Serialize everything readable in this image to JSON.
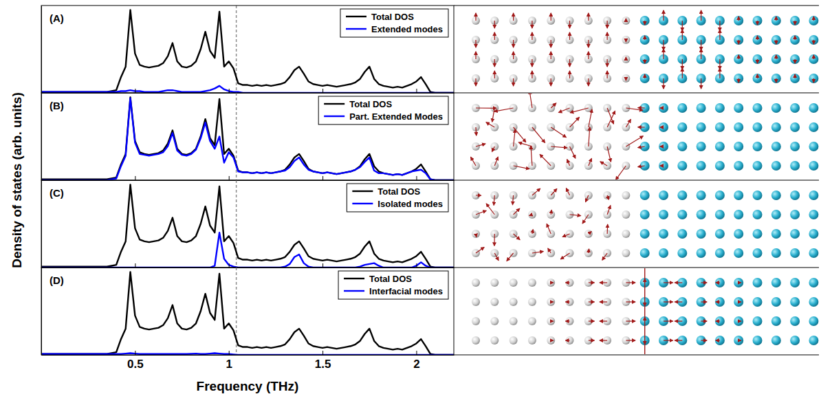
{
  "figure": {
    "ylabel": "Density of states (arb. units)",
    "xlabel": "Frequency (THz)"
  },
  "chart_data": [
    {
      "type": "line",
      "title": "(A)",
      "x": [
        0,
        0.025,
        0.05,
        0.075,
        0.1,
        0.125,
        0.15,
        0.175,
        0.2,
        0.225,
        0.25,
        0.275,
        0.3,
        0.325,
        0.35,
        0.375,
        0.4,
        0.425,
        0.45,
        0.475,
        0.5,
        0.525,
        0.55,
        0.575,
        0.6,
        0.625,
        0.65,
        0.675,
        0.7,
        0.725,
        0.75,
        0.775,
        0.8,
        0.825,
        0.85,
        0.875,
        0.9,
        0.925,
        0.95,
        0.975,
        1,
        1.025,
        1.05,
        1.075,
        1.1,
        1.125,
        1.15,
        1.175,
        1.2,
        1.225,
        1.25,
        1.275,
        1.3,
        1.325,
        1.35,
        1.375,
        1.4,
        1.425,
        1.45,
        1.475,
        1.5,
        1.525,
        1.55,
        1.575,
        1.6,
        1.625,
        1.65,
        1.675,
        1.7,
        1.725,
        1.75,
        1.775,
        1.8,
        1.825,
        1.85,
        1.875,
        1.9,
        1.925,
        1.95,
        1.975,
        2,
        2.025,
        2.05,
        2.075,
        2.1,
        2.125,
        2.15,
        2.175,
        2.2
      ],
      "xlim": [
        0,
        2.2
      ],
      "xticks": [
        0.5,
        1,
        1.5,
        2
      ],
      "ylim": [
        0,
        1
      ],
      "yticks": [],
      "tick_labels": false,
      "legend": "upper right",
      "vlines": [
        1.04
      ],
      "series": [
        {
          "name": "Total DOS",
          "color": "#000000",
          "values": [
            0.01,
            0.01,
            0.01,
            0.01,
            0.01,
            0.01,
            0.01,
            0.01,
            0.01,
            0.01,
            0.01,
            0.01,
            0.01,
            0.01,
            0.01,
            0.02,
            0.03,
            0.18,
            0.3,
            0.95,
            0.45,
            0.32,
            0.3,
            0.29,
            0.3,
            0.31,
            0.34,
            0.42,
            0.57,
            0.36,
            0.3,
            0.29,
            0.31,
            0.36,
            0.5,
            0.7,
            0.48,
            0.4,
            0.93,
            0.3,
            0.36,
            0.28,
            0.11,
            0.09,
            0.09,
            0.08,
            0.09,
            0.08,
            0.09,
            0.08,
            0.09,
            0.1,
            0.12,
            0.18,
            0.26,
            0.3,
            0.22,
            0.13,
            0.1,
            0.09,
            0.08,
            0.09,
            0.08,
            0.07,
            0.08,
            0.09,
            0.1,
            0.12,
            0.16,
            0.24,
            0.3,
            0.16,
            0.1,
            0.08,
            0.07,
            0.06,
            0.07,
            0.06,
            0.08,
            0.1,
            0.13,
            0.18,
            0.1,
            0.01,
            0,
            0,
            0,
            0,
            0
          ]
        },
        {
          "name": "Extended modes",
          "color": "#0000ff",
          "values": [
            0.01,
            0.01,
            0.01,
            0.01,
            0.01,
            0.01,
            0.01,
            0.01,
            0.01,
            0.01,
            0.01,
            0.01,
            0.01,
            0.01,
            0.01,
            0.01,
            0.01,
            0.02,
            0.02,
            0.03,
            0.02,
            0.02,
            0.01,
            0.01,
            0.01,
            0.01,
            0.02,
            0.03,
            0.03,
            0.02,
            0.01,
            0.01,
            0.01,
            0.01,
            0.01,
            0.02,
            0.03,
            0.05,
            0.08,
            0.04,
            0.02,
            0.01,
            0.01,
            0,
            0,
            0,
            0,
            0,
            0,
            0,
            0,
            0,
            0,
            0,
            0,
            0,
            0,
            0,
            0,
            0,
            0,
            0,
            0,
            0,
            0,
            0,
            0,
            0,
            0,
            0,
            0,
            0,
            0,
            0,
            0,
            0,
            0,
            0,
            0,
            0,
            0,
            0,
            0,
            0,
            0,
            0,
            0,
            0,
            0
          ]
        }
      ]
    },
    {
      "type": "line",
      "title": "(B)",
      "x": [
        0,
        0.025,
        0.05,
        0.075,
        0.1,
        0.125,
        0.15,
        0.175,
        0.2,
        0.225,
        0.25,
        0.275,
        0.3,
        0.325,
        0.35,
        0.375,
        0.4,
        0.425,
        0.45,
        0.475,
        0.5,
        0.525,
        0.55,
        0.575,
        0.6,
        0.625,
        0.65,
        0.675,
        0.7,
        0.725,
        0.75,
        0.775,
        0.8,
        0.825,
        0.85,
        0.875,
        0.9,
        0.925,
        0.95,
        0.975,
        1,
        1.025,
        1.05,
        1.075,
        1.1,
        1.125,
        1.15,
        1.175,
        1.2,
        1.225,
        1.25,
        1.275,
        1.3,
        1.325,
        1.35,
        1.375,
        1.4,
        1.425,
        1.45,
        1.475,
        1.5,
        1.525,
        1.55,
        1.575,
        1.6,
        1.625,
        1.65,
        1.675,
        1.7,
        1.725,
        1.75,
        1.775,
        1.8,
        1.825,
        1.85,
        1.875,
        1.9,
        1.925,
        1.95,
        1.975,
        2,
        2.025,
        2.05,
        2.075,
        2.1,
        2.125,
        2.15,
        2.175,
        2.2
      ],
      "xlim": [
        0,
        2.2
      ],
      "xticks": [
        0.5,
        1,
        1.5,
        2
      ],
      "ylim": [
        0,
        1
      ],
      "yticks": [],
      "tick_labels": false,
      "legend": "upper right",
      "vlines": [
        1.04
      ],
      "series": [
        {
          "name": "Total DOS",
          "color": "#000000",
          "values": [
            0.01,
            0.01,
            0.01,
            0.01,
            0.01,
            0.01,
            0.01,
            0.01,
            0.01,
            0.01,
            0.01,
            0.01,
            0.01,
            0.01,
            0.01,
            0.02,
            0.03,
            0.18,
            0.3,
            0.95,
            0.45,
            0.32,
            0.3,
            0.29,
            0.3,
            0.31,
            0.34,
            0.42,
            0.57,
            0.36,
            0.3,
            0.29,
            0.31,
            0.36,
            0.5,
            0.7,
            0.48,
            0.4,
            0.93,
            0.3,
            0.36,
            0.28,
            0.11,
            0.09,
            0.09,
            0.08,
            0.09,
            0.08,
            0.09,
            0.08,
            0.09,
            0.1,
            0.12,
            0.18,
            0.26,
            0.3,
            0.22,
            0.13,
            0.1,
            0.09,
            0.08,
            0.09,
            0.08,
            0.07,
            0.08,
            0.09,
            0.1,
            0.12,
            0.16,
            0.24,
            0.3,
            0.16,
            0.1,
            0.08,
            0.07,
            0.06,
            0.07,
            0.06,
            0.08,
            0.1,
            0.13,
            0.18,
            0.1,
            0.01,
            0,
            0,
            0,
            0,
            0
          ]
        },
        {
          "name": "Part. Extended Modes",
          "color": "#0000ff",
          "values": [
            0,
            0,
            0,
            0,
            0,
            0,
            0,
            0,
            0,
            0,
            0,
            0,
            0,
            0,
            0,
            0.01,
            0.02,
            0.16,
            0.28,
            0.94,
            0.43,
            0.3,
            0.29,
            0.28,
            0.29,
            0.3,
            0.32,
            0.39,
            0.54,
            0.34,
            0.29,
            0.28,
            0.3,
            0.35,
            0.48,
            0.66,
            0.45,
            0.36,
            0.5,
            0.2,
            0.32,
            0.26,
            0.1,
            0.09,
            0.09,
            0.08,
            0.09,
            0.08,
            0.09,
            0.08,
            0.09,
            0.1,
            0.11,
            0.15,
            0.22,
            0.26,
            0.18,
            0.12,
            0.1,
            0.09,
            0.08,
            0.09,
            0.08,
            0.07,
            0.08,
            0.09,
            0.1,
            0.12,
            0.15,
            0.21,
            0.26,
            0.11,
            0.08,
            0.08,
            0.07,
            0.06,
            0.07,
            0.06,
            0.08,
            0.1,
            0.11,
            0.12,
            0.08,
            0.01,
            0,
            0,
            0,
            0,
            0
          ]
        }
      ]
    },
    {
      "type": "line",
      "title": "(C)",
      "x": [
        0,
        0.025,
        0.05,
        0.075,
        0.1,
        0.125,
        0.15,
        0.175,
        0.2,
        0.225,
        0.25,
        0.275,
        0.3,
        0.325,
        0.35,
        0.375,
        0.4,
        0.425,
        0.45,
        0.475,
        0.5,
        0.525,
        0.55,
        0.575,
        0.6,
        0.625,
        0.65,
        0.675,
        0.7,
        0.725,
        0.75,
        0.775,
        0.8,
        0.825,
        0.85,
        0.875,
        0.9,
        0.925,
        0.95,
        0.975,
        1,
        1.025,
        1.05,
        1.075,
        1.1,
        1.125,
        1.15,
        1.175,
        1.2,
        1.225,
        1.25,
        1.275,
        1.3,
        1.325,
        1.35,
        1.375,
        1.4,
        1.425,
        1.45,
        1.475,
        1.5,
        1.525,
        1.55,
        1.575,
        1.6,
        1.625,
        1.65,
        1.675,
        1.7,
        1.725,
        1.75,
        1.775,
        1.8,
        1.825,
        1.85,
        1.875,
        1.9,
        1.925,
        1.95,
        1.975,
        2,
        2.025,
        2.05,
        2.075,
        2.1,
        2.125,
        2.15,
        2.175,
        2.2
      ],
      "xlim": [
        0,
        2.2
      ],
      "xticks": [
        0.5,
        1,
        1.5,
        2
      ],
      "ylim": [
        0,
        1
      ],
      "yticks": [],
      "tick_labels": false,
      "legend": "upper right",
      "vlines": [
        1.04
      ],
      "series": [
        {
          "name": "Total DOS",
          "color": "#000000",
          "values": [
            0.01,
            0.01,
            0.01,
            0.01,
            0.01,
            0.01,
            0.01,
            0.01,
            0.01,
            0.01,
            0.01,
            0.01,
            0.01,
            0.01,
            0.01,
            0.02,
            0.03,
            0.18,
            0.3,
            0.95,
            0.45,
            0.32,
            0.3,
            0.29,
            0.3,
            0.31,
            0.34,
            0.42,
            0.57,
            0.36,
            0.3,
            0.29,
            0.31,
            0.36,
            0.5,
            0.7,
            0.48,
            0.4,
            0.93,
            0.3,
            0.36,
            0.28,
            0.11,
            0.09,
            0.09,
            0.08,
            0.09,
            0.08,
            0.09,
            0.08,
            0.09,
            0.1,
            0.12,
            0.18,
            0.26,
            0.3,
            0.22,
            0.13,
            0.1,
            0.09,
            0.08,
            0.09,
            0.08,
            0.07,
            0.08,
            0.09,
            0.1,
            0.12,
            0.16,
            0.24,
            0.3,
            0.16,
            0.1,
            0.08,
            0.07,
            0.06,
            0.07,
            0.06,
            0.08,
            0.1,
            0.13,
            0.18,
            0.1,
            0.01,
            0,
            0,
            0,
            0,
            0
          ]
        },
        {
          "name": "Isolated modes",
          "color": "#0000ff",
          "values": [
            0,
            0,
            0,
            0,
            0,
            0,
            0,
            0,
            0,
            0,
            0,
            0,
            0,
            0,
            0,
            0,
            0,
            0,
            0,
            0,
            0,
            0,
            0,
            0,
            0,
            0,
            0,
            0,
            0,
            0,
            0,
            0,
            0,
            0,
            0,
            0,
            0,
            0.02,
            0.4,
            0.1,
            0.03,
            0.01,
            0,
            0,
            0,
            0,
            0,
            0,
            0,
            0,
            0,
            0,
            0.01,
            0.04,
            0.12,
            0.15,
            0.05,
            0.01,
            0,
            0,
            0,
            0,
            0,
            0,
            0,
            0,
            0,
            0,
            0.01,
            0.03,
            0.04,
            0.05,
            0.02,
            0,
            0,
            0,
            0,
            0,
            0,
            0,
            0.02,
            0.06,
            0.02,
            0,
            0,
            0,
            0,
            0,
            0
          ]
        }
      ]
    },
    {
      "type": "line",
      "title": "(D)",
      "x": [
        0,
        0.025,
        0.05,
        0.075,
        0.1,
        0.125,
        0.15,
        0.175,
        0.2,
        0.225,
        0.25,
        0.275,
        0.3,
        0.325,
        0.35,
        0.375,
        0.4,
        0.425,
        0.45,
        0.475,
        0.5,
        0.525,
        0.55,
        0.575,
        0.6,
        0.625,
        0.65,
        0.675,
        0.7,
        0.725,
        0.75,
        0.775,
        0.8,
        0.825,
        0.85,
        0.875,
        0.9,
        0.925,
        0.95,
        0.975,
        1,
        1.025,
        1.05,
        1.075,
        1.1,
        1.125,
        1.15,
        1.175,
        1.2,
        1.225,
        1.25,
        1.275,
        1.3,
        1.325,
        1.35,
        1.375,
        1.4,
        1.425,
        1.45,
        1.475,
        1.5,
        1.525,
        1.55,
        1.575,
        1.6,
        1.625,
        1.65,
        1.675,
        1.7,
        1.725,
        1.75,
        1.775,
        1.8,
        1.825,
        1.85,
        1.875,
        1.9,
        1.925,
        1.95,
        1.975,
        2,
        2.025,
        2.05,
        2.075,
        2.1,
        2.125,
        2.15,
        2.175,
        2.2
      ],
      "xlim": [
        0,
        2.2
      ],
      "xticks": [
        0.5,
        1,
        1.5,
        2
      ],
      "ylim": [
        0,
        1
      ],
      "yticks": [],
      "tick_labels": "x",
      "legend": "upper right",
      "vlines": [
        1.04
      ],
      "series": [
        {
          "name": "Total DOS",
          "color": "#000000",
          "values": [
            0.01,
            0.01,
            0.01,
            0.01,
            0.01,
            0.01,
            0.01,
            0.01,
            0.01,
            0.01,
            0.01,
            0.01,
            0.01,
            0.01,
            0.01,
            0.02,
            0.03,
            0.18,
            0.3,
            0.95,
            0.45,
            0.32,
            0.3,
            0.29,
            0.3,
            0.31,
            0.34,
            0.42,
            0.57,
            0.36,
            0.3,
            0.29,
            0.31,
            0.36,
            0.5,
            0.7,
            0.48,
            0.4,
            0.93,
            0.3,
            0.36,
            0.28,
            0.11,
            0.09,
            0.09,
            0.08,
            0.09,
            0.08,
            0.09,
            0.08,
            0.09,
            0.1,
            0.12,
            0.18,
            0.26,
            0.3,
            0.22,
            0.13,
            0.1,
            0.09,
            0.08,
            0.09,
            0.08,
            0.07,
            0.08,
            0.09,
            0.1,
            0.12,
            0.16,
            0.24,
            0.3,
            0.16,
            0.1,
            0.08,
            0.07,
            0.06,
            0.07,
            0.06,
            0.08,
            0.1,
            0.13,
            0.18,
            0.1,
            0.01,
            0,
            0,
            0,
            0,
            0
          ]
        },
        {
          "name": "Interfacial modes",
          "color": "#0000ff",
          "values": [
            0.01,
            0.01,
            0.01,
            0.01,
            0.01,
            0.01,
            0.01,
            0.01,
            0.01,
            0.01,
            0.01,
            0.01,
            0.01,
            0.01,
            0.01,
            0.01,
            0.01,
            0.01,
            0.015,
            0.02,
            0.015,
            0.01,
            0.01,
            0.01,
            0.01,
            0.01,
            0.01,
            0.01,
            0.01,
            0.01,
            0.01,
            0.01,
            0.012,
            0.015,
            0.01,
            0.01,
            0.015,
            0.02,
            0.015,
            0.01,
            0.01,
            0.005,
            0,
            0,
            0,
            0,
            0,
            0,
            0,
            0,
            0,
            0,
            0,
            0,
            0,
            0,
            0,
            0,
            0,
            0,
            0,
            0,
            0,
            0,
            0,
            0,
            0,
            0,
            0,
            0,
            0,
            0,
            0,
            0,
            0,
            0,
            0,
            0,
            0,
            0,
            0,
            0,
            0,
            0,
            0,
            0,
            0,
            0,
            0
          ]
        }
      ]
    }
  ]
}
